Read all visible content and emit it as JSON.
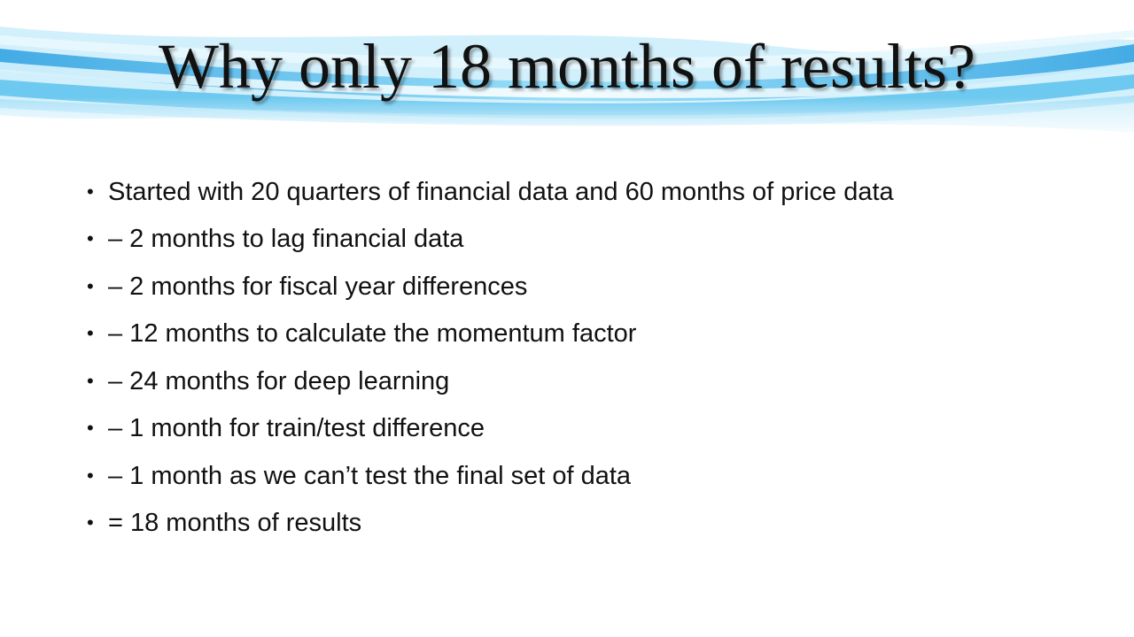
{
  "title": "Why only 18 months of results?",
  "bullet_glyph": "•",
  "bullets": [
    "Started with 20 quarters of financial data and 60 months of price data",
    "– 2 months to lag financial data",
    "– 2 months for fiscal year differences",
    "– 12 months to calculate the momentum factor",
    "– 24 months for deep learning",
    "– 1 month for train/test difference",
    "– 1 month as we can’t test the final set of data",
    "= 18 months of results"
  ],
  "colors": {
    "wave_light": "#bfe9fb",
    "wave_mid": "#5cc6f0",
    "wave_deep": "#1e8fd6",
    "text": "#111111",
    "background": "#ffffff"
  }
}
